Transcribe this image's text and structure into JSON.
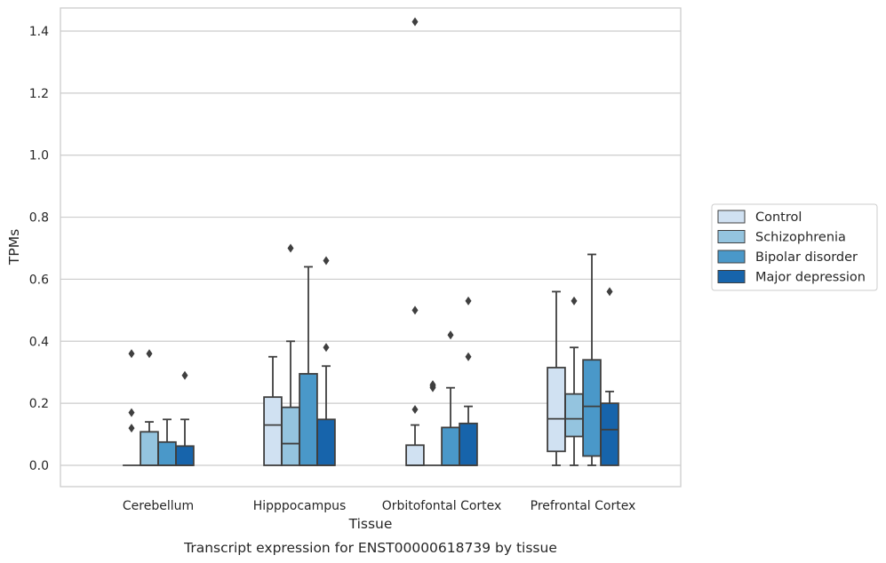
{
  "chart_data": {
    "type": "box",
    "title": "Transcript expression for ENST00000618739 by tissue",
    "xlabel": "Tissue",
    "ylabel": "TPMs",
    "ylim": [
      -0.07,
      1.5
    ],
    "yticks": [
      0.0,
      0.2,
      0.4,
      0.6,
      0.8,
      1.0,
      1.2,
      1.4
    ],
    "ytick_labels": [
      "0.0",
      "0.2",
      "0.4",
      "0.6",
      "0.8",
      "1.0",
      "1.2",
      "1.4"
    ],
    "grid": "horizontal",
    "legend_position": "right",
    "categories": [
      "Cerebellum",
      "Hipppocampus",
      "Orbitofontal Cortex",
      "Prefrontal Cortex"
    ],
    "series": [
      {
        "name": "Control",
        "color": "#d0e1f2",
        "boxes": [
          {
            "whislo": 0,
            "q1": 0,
            "med": 0,
            "q3": 0,
            "whishi": 0,
            "fliers": [
              0.12,
              0.17,
              0.36
            ]
          },
          {
            "whislo": 0,
            "q1": 0,
            "med": 0.13,
            "q3": 0.22,
            "whishi": 0.35,
            "fliers": []
          },
          {
            "whislo": 0,
            "q1": 0,
            "med": 0,
            "q3": 0.065,
            "whishi": 0.13,
            "fliers": [
              0.18,
              0.5,
              1.43
            ]
          },
          {
            "whislo": 0,
            "q1": 0.045,
            "med": 0.15,
            "q3": 0.315,
            "whishi": 0.56,
            "fliers": []
          }
        ]
      },
      {
        "name": "Schizophrenia",
        "color": "#94c4df",
        "boxes": [
          {
            "whislo": 0,
            "q1": 0,
            "med": 0,
            "q3": 0.108,
            "whishi": 0.14,
            "fliers": [
              0.36
            ]
          },
          {
            "whislo": 0,
            "q1": 0,
            "med": 0.07,
            "q3": 0.187,
            "whishi": 0.4,
            "fliers": [
              0.7
            ]
          },
          {
            "whislo": 0,
            "q1": 0,
            "med": 0,
            "q3": 0,
            "whishi": 0,
            "fliers": [
              0.25,
              0.255,
              0.26
            ]
          },
          {
            "whislo": 0,
            "q1": 0.093,
            "med": 0.15,
            "q3": 0.23,
            "whishi": 0.38,
            "fliers": [
              0.53
            ]
          }
        ]
      },
      {
        "name": "Bipolar disorder",
        "color": "#4a98c9",
        "boxes": [
          {
            "whislo": 0,
            "q1": 0,
            "med": 0,
            "q3": 0.075,
            "whishi": 0.148,
            "fliers": []
          },
          {
            "whislo": 0,
            "q1": 0,
            "med": 0,
            "q3": 0.295,
            "whishi": 0.64,
            "fliers": []
          },
          {
            "whislo": 0,
            "q1": 0,
            "med": 0,
            "q3": 0.122,
            "whishi": 0.25,
            "fliers": [
              0.42
            ]
          },
          {
            "whislo": 0,
            "q1": 0.03,
            "med": 0.19,
            "q3": 0.34,
            "whishi": 0.68,
            "fliers": []
          }
        ]
      },
      {
        "name": "Major depression",
        "color": "#1764ab",
        "boxes": [
          {
            "whislo": 0,
            "q1": 0,
            "med": 0,
            "q3": 0.062,
            "whishi": 0.148,
            "fliers": [
              0.29
            ]
          },
          {
            "whislo": 0,
            "q1": 0,
            "med": 0,
            "q3": 0.148,
            "whishi": 0.32,
            "fliers": [
              0.38,
              0.66
            ]
          },
          {
            "whislo": 0,
            "q1": 0,
            "med": 0,
            "q3": 0.135,
            "whishi": 0.19,
            "fliers": [
              0.35,
              0.53
            ]
          },
          {
            "whislo": 0,
            "q1": 0,
            "med": 0.115,
            "q3": 0.2,
            "whishi": 0.238,
            "fliers": [
              0.56
            ]
          }
        ]
      }
    ]
  }
}
